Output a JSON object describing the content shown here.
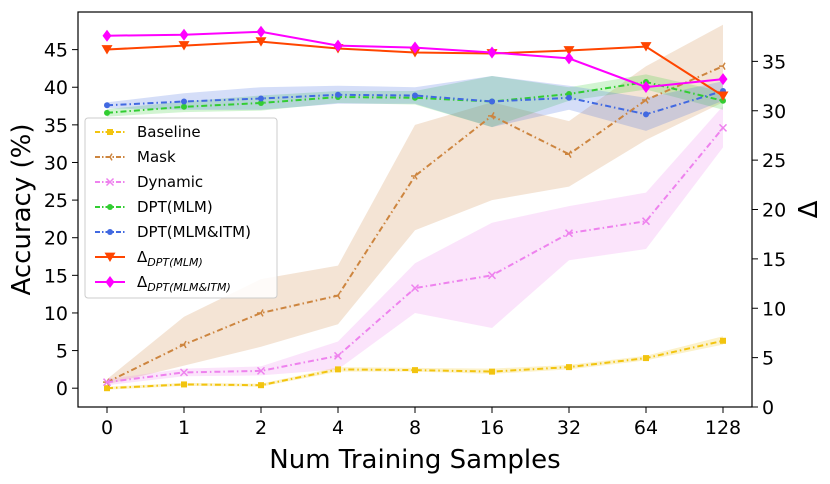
{
  "chart_data": {
    "type": "line",
    "title": "",
    "xlabel": "Num Training Samples",
    "ylabel": "Accuracy (%)",
    "y2label": "Δ",
    "categories": [
      "0",
      "1",
      "2",
      "4",
      "8",
      "16",
      "32",
      "64",
      "128"
    ],
    "ylim": [
      -2.5,
      50
    ],
    "yticks": [
      0,
      5,
      10,
      15,
      20,
      25,
      30,
      35,
      40,
      45
    ],
    "y2lim": [
      0,
      40
    ],
    "y2ticks": [
      0,
      5,
      10,
      15,
      20,
      25,
      30,
      35
    ],
    "grid": false,
    "legend_position": "center-left",
    "series": [
      {
        "name": "Baseline",
        "axis": "left",
        "color": "#f2c40f",
        "marker": "square",
        "values": [
          0.0,
          0.5,
          0.4,
          2.5,
          2.4,
          2.2,
          2.8,
          4.0,
          6.3
        ],
        "lower": [
          -0.2,
          0.3,
          0.2,
          2.2,
          2.2,
          1.9,
          2.5,
          3.7,
          5.8
        ],
        "upper": [
          0.2,
          0.7,
          0.6,
          2.8,
          2.7,
          2.6,
          3.1,
          4.3,
          6.9
        ]
      },
      {
        "name": "Mask",
        "axis": "left",
        "color": "#cd853f",
        "marker": "tri_left",
        "values": [
          0.8,
          5.8,
          10.0,
          12.3,
          28.2,
          36.2,
          31.1,
          38.3,
          42.8
        ],
        "lower": [
          0.5,
          3.0,
          5.5,
          8.5,
          21.0,
          25.0,
          26.8,
          33.0,
          38.0
        ],
        "upper": [
          1.2,
          9.5,
          14.5,
          16.3,
          35.0,
          38.0,
          35.5,
          42.8,
          48.3
        ]
      },
      {
        "name": "Dynamic",
        "axis": "left",
        "color": "#ee82ee",
        "marker": "x",
        "values": [
          0.8,
          2.1,
          2.3,
          4.3,
          13.3,
          15.0,
          20.6,
          22.2,
          34.6
        ],
        "lower": [
          0.4,
          1.6,
          1.7,
          2.5,
          10.0,
          8.0,
          17.0,
          18.5,
          32.0
        ],
        "upper": [
          1.2,
          2.6,
          2.9,
          6.2,
          16.6,
          22.0,
          24.2,
          26.0,
          37.5
        ]
      },
      {
        "name": "DPT(MLM)",
        "axis": "left",
        "color": "#32cd32",
        "marker": "dot",
        "values": [
          36.6,
          37.4,
          37.9,
          38.7,
          38.6,
          38.1,
          39.1,
          40.7,
          38.2
        ],
        "lower": [
          36.1,
          36.7,
          36.9,
          37.9,
          37.7,
          34.7,
          38.2,
          39.7,
          37.0
        ],
        "upper": [
          37.1,
          38.1,
          38.9,
          39.5,
          39.5,
          41.5,
          40.0,
          41.7,
          39.4
        ]
      },
      {
        "name": "DPT(MLM&ITM)",
        "axis": "left",
        "color": "#4169e1",
        "marker": "dot",
        "values": [
          37.6,
          38.1,
          38.5,
          39.0,
          38.9,
          38.1,
          38.6,
          36.4,
          39.5
        ],
        "lower": [
          37.2,
          37.0,
          37.0,
          37.8,
          37.8,
          34.7,
          37.0,
          34.2,
          38.2
        ],
        "upper": [
          38.0,
          39.2,
          40.0,
          40.2,
          40.0,
          41.5,
          40.2,
          38.6,
          40.8
        ]
      },
      {
        "name": "Δ_{DPT(MLM)}",
        "legend_main": "Δ",
        "legend_sub": "DPT(MLM)",
        "axis": "right",
        "color": "#ff4500",
        "marker": "triangle_down",
        "values": [
          36.2,
          36.6,
          37.0,
          36.3,
          35.9,
          35.8,
          36.1,
          36.5,
          31.5
        ]
      },
      {
        "name": "Δ_{DPT(MLM&ITM)}",
        "legend_main": "Δ",
        "legend_sub": "DPT(MLM&ITM)",
        "axis": "right",
        "color": "#ff00ff",
        "marker": "diamond",
        "values": [
          37.6,
          37.7,
          38.0,
          36.6,
          36.4,
          35.9,
          35.3,
          32.4,
          33.2
        ]
      }
    ]
  }
}
